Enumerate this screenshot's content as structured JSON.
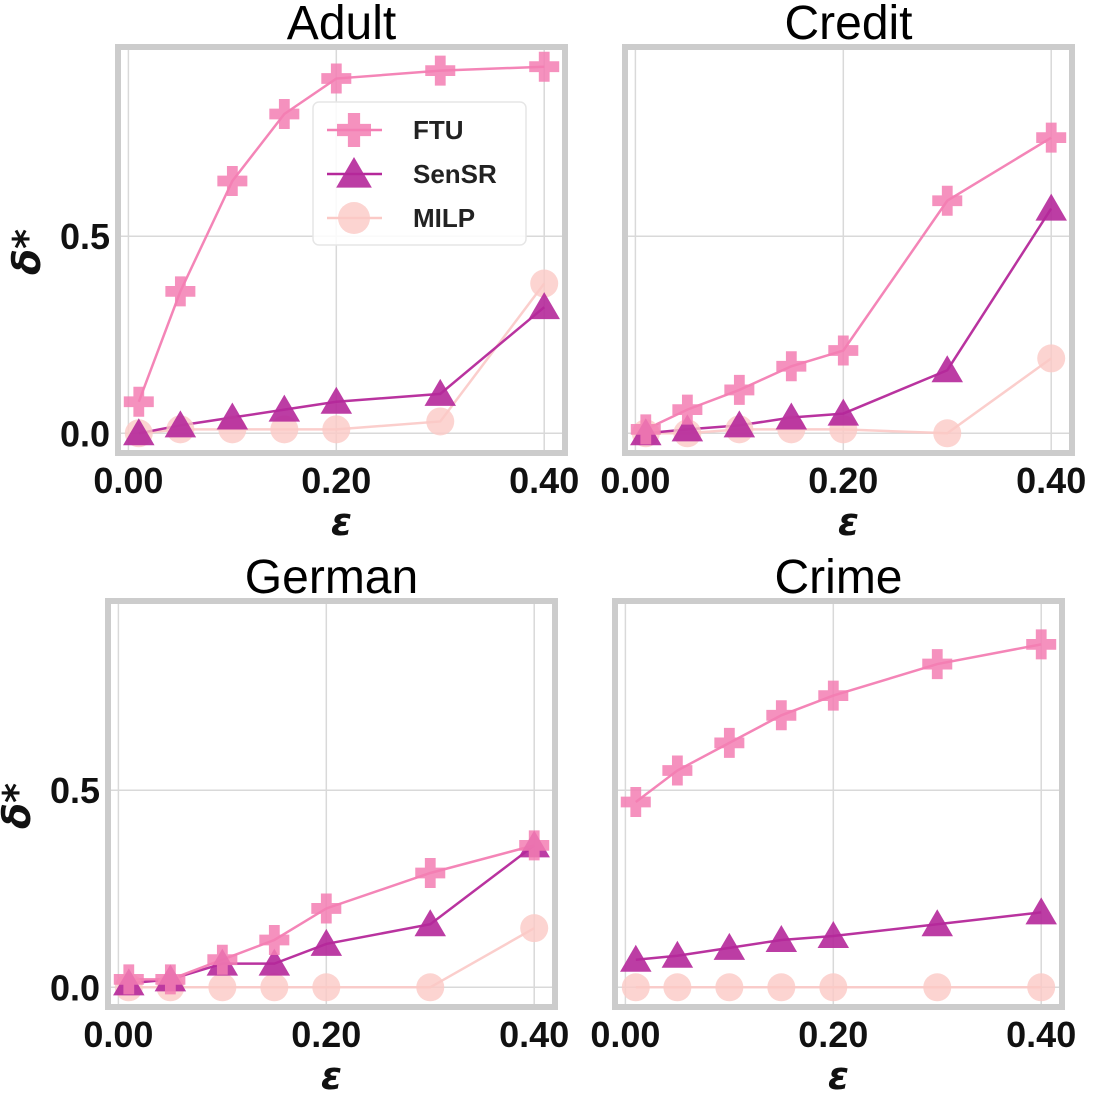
{
  "chart_data": [
    {
      "type": "line",
      "title": "Adult",
      "xlabel": "ε",
      "ylabel": "δ*",
      "x": [
        0.01,
        0.05,
        0.1,
        0.15,
        0.2,
        0.3,
        0.4
      ],
      "xticks": [
        "0.00",
        "0.20",
        "0.40"
      ],
      "yticks": [
        "0.0",
        "0.5"
      ],
      "xlim": [
        -0.01,
        0.42
      ],
      "ylim": [
        -0.05,
        0.98
      ],
      "grid": true,
      "legend": "upper-center",
      "series": [
        {
          "name": "FTU",
          "values": [
            0.08,
            0.36,
            0.64,
            0.81,
            0.9,
            0.92,
            0.93
          ]
        },
        {
          "name": "SenSR",
          "values": [
            0.0,
            0.02,
            0.04,
            0.06,
            0.08,
            0.1,
            0.32
          ]
        },
        {
          "name": "MILP",
          "values": [
            0.0,
            0.01,
            0.01,
            0.01,
            0.01,
            0.03,
            0.38
          ]
        }
      ]
    },
    {
      "type": "line",
      "title": "Credit",
      "xlabel": "ε",
      "ylabel": "",
      "x": [
        0.01,
        0.05,
        0.1,
        0.15,
        0.2,
        0.3,
        0.4
      ],
      "xticks": [
        "0.00",
        "0.20",
        "0.40"
      ],
      "yticks": [
        "0.0",
        "0.5"
      ],
      "xlim": [
        -0.01,
        0.42
      ],
      "ylim": [
        -0.05,
        0.98
      ],
      "grid": true,
      "legend": "none",
      "series": [
        {
          "name": "FTU",
          "values": [
            0.01,
            0.06,
            0.11,
            0.17,
            0.21,
            0.59,
            0.75
          ]
        },
        {
          "name": "SenSR",
          "values": [
            0.0,
            0.01,
            0.02,
            0.04,
            0.05,
            0.16,
            0.57
          ]
        },
        {
          "name": "MILP",
          "values": [
            0.0,
            0.0,
            0.01,
            0.01,
            0.01,
            0.0,
            0.19
          ]
        }
      ]
    },
    {
      "type": "line",
      "title": "German",
      "xlabel": "ε",
      "ylabel": "δ*",
      "x": [
        0.01,
        0.05,
        0.1,
        0.15,
        0.2,
        0.3,
        0.4
      ],
      "xticks": [
        "0.00",
        "0.20",
        "0.40"
      ],
      "yticks": [
        "0.0",
        "0.5"
      ],
      "xlim": [
        -0.01,
        0.42
      ],
      "ylim": [
        -0.05,
        0.98
      ],
      "grid": true,
      "legend": "none",
      "series": [
        {
          "name": "FTU",
          "values": [
            0.02,
            0.02,
            0.07,
            0.12,
            0.2,
            0.29,
            0.36
          ]
        },
        {
          "name": "SenSR",
          "values": [
            0.01,
            0.02,
            0.06,
            0.06,
            0.11,
            0.16,
            0.36
          ]
        },
        {
          "name": "MILP",
          "values": [
            0.0,
            0.0,
            0.0,
            0.0,
            0.0,
            0.0,
            0.15
          ]
        }
      ]
    },
    {
      "type": "line",
      "title": "Crime",
      "xlabel": "ε",
      "ylabel": "",
      "x": [
        0.01,
        0.05,
        0.1,
        0.15,
        0.2,
        0.3,
        0.4
      ],
      "xticks": [
        "0.00",
        "0.20",
        "0.40"
      ],
      "yticks": [
        "0.0",
        "0.5"
      ],
      "xlim": [
        -0.01,
        0.42
      ],
      "ylim": [
        -0.05,
        0.98
      ],
      "grid": true,
      "legend": "none",
      "series": [
        {
          "name": "FTU",
          "values": [
            0.47,
            0.55,
            0.62,
            0.69,
            0.74,
            0.82,
            0.87
          ]
        },
        {
          "name": "SenSR",
          "values": [
            0.07,
            0.08,
            0.1,
            0.12,
            0.13,
            0.16,
            0.19
          ]
        },
        {
          "name": "MILP",
          "values": [
            0.0,
            0.0,
            0.0,
            0.0,
            0.0,
            0.0,
            0.0
          ]
        }
      ]
    }
  ],
  "colors": {
    "FTU": "#f37eb3",
    "SenSR": "#b5289a",
    "MILP": "#fbc9c6"
  }
}
